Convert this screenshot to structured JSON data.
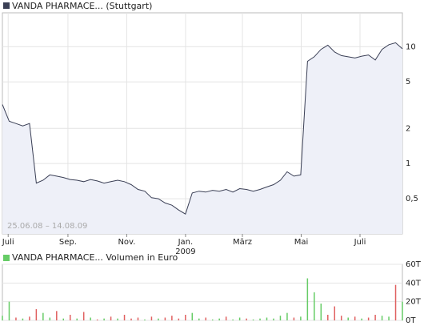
{
  "chart_data": [
    {
      "type": "line",
      "log_scale": true,
      "grid": true,
      "annotation": "25.06.08 – 14.08.09",
      "xlim": [
        "2008-06-25",
        "2009-08-14"
      ],
      "xticks": [
        {
          "value": "2008-07",
          "label": "Juli"
        },
        {
          "value": "2008-09",
          "label": "Sep."
        },
        {
          "value": "2008-11",
          "label": "Nov."
        },
        {
          "value": "2009-01",
          "label": "Jan."
        },
        {
          "value": "2009-03",
          "label": "März"
        },
        {
          "value": "2009-05",
          "label": "Mai"
        },
        {
          "value": "2009-07",
          "label": "Juli"
        }
      ],
      "year_labels": [
        {
          "value": "2009-01",
          "label": "2009"
        }
      ],
      "ylim": [
        0.25,
        19.5
      ],
      "yticks": [
        {
          "value": 0.5,
          "label": "0,5"
        },
        1,
        2,
        5,
        10
      ],
      "series": [
        {
          "name": "VANDA PHARMACE... (Stuttgart)",
          "color": "#3a3f55",
          "fill": "#eef0f8",
          "values": [
            3.2,
            2.3,
            2.2,
            2.1,
            2.2,
            0.68,
            0.72,
            0.8,
            0.78,
            0.76,
            0.73,
            0.72,
            0.7,
            0.73,
            0.71,
            0.68,
            0.7,
            0.72,
            0.7,
            0.66,
            0.6,
            0.58,
            0.51,
            0.5,
            0.46,
            0.44,
            0.4,
            0.37,
            0.56,
            0.58,
            0.57,
            0.59,
            0.58,
            0.6,
            0.57,
            0.61,
            0.6,
            0.58,
            0.6,
            0.63,
            0.66,
            0.72,
            0.85,
            0.78,
            0.8,
            7.5,
            8.2,
            9.5,
            10.3,
            9.0,
            8.4,
            8.2,
            8.0,
            8.3,
            8.5,
            7.7,
            9.5,
            10.4,
            10.8,
            9.6
          ]
        }
      ]
    },
    {
      "type": "bar",
      "grid": true,
      "xlim": [
        "2008-06-25",
        "2009-08-14"
      ],
      "ylim": [
        0,
        60000
      ],
      "yticks": [
        {
          "value": 0,
          "label": "0T"
        },
        {
          "value": 20000,
          "label": "20T"
        },
        {
          "value": 40000,
          "label": "40T"
        },
        {
          "value": 60000,
          "label": "60T"
        }
      ],
      "series": [
        {
          "name": "VANDA PHARMACE... Volumen in Euro",
          "color": "#66cc66",
          "values": [
            5000,
            20000,
            3000,
            2000,
            4000,
            12000,
            8000,
            3000,
            10000,
            2000,
            6000,
            2000,
            9000,
            3000,
            1000,
            2000,
            4000,
            2000,
            6000,
            2000,
            3000,
            1000,
            4000,
            2000,
            3000,
            5000,
            2000,
            6000,
            8000,
            2000,
            3000,
            1000,
            2000,
            4000,
            1000,
            3000,
            2000,
            1000,
            2000,
            3000,
            2000,
            5000,
            8000,
            3000,
            4000,
            45000,
            30000,
            18000,
            6000,
            15000,
            5000,
            3000,
            4000,
            2000,
            3000,
            6000,
            5000,
            4000,
            38000,
            20000
          ],
          "colors": [
            "#66cc66",
            "#66cc66",
            "#e06060",
            "#66cc66",
            "#e06060",
            "#e06060",
            "#66cc66",
            "#66cc66",
            "#e06060",
            "#66cc66",
            "#e06060",
            "#66cc66",
            "#e06060",
            "#66cc66",
            "#e06060",
            "#66cc66",
            "#e06060",
            "#66cc66",
            "#e06060",
            "#e06060",
            "#e06060",
            "#66cc66",
            "#e06060",
            "#66cc66",
            "#e06060",
            "#e06060",
            "#e06060",
            "#e06060",
            "#66cc66",
            "#66cc66",
            "#e06060",
            "#66cc66",
            "#66cc66",
            "#e06060",
            "#66cc66",
            "#66cc66",
            "#e06060",
            "#66cc66",
            "#66cc66",
            "#66cc66",
            "#66cc66",
            "#66cc66",
            "#66cc66",
            "#e06060",
            "#66cc66",
            "#66cc66",
            "#66cc66",
            "#66cc66",
            "#e06060",
            "#e06060",
            "#e06060",
            "#66cc66",
            "#e06060",
            "#66cc66",
            "#e06060",
            "#e06060",
            "#66cc66",
            "#66cc66",
            "#e06060",
            "#66cc66"
          ]
        }
      ]
    }
  ]
}
